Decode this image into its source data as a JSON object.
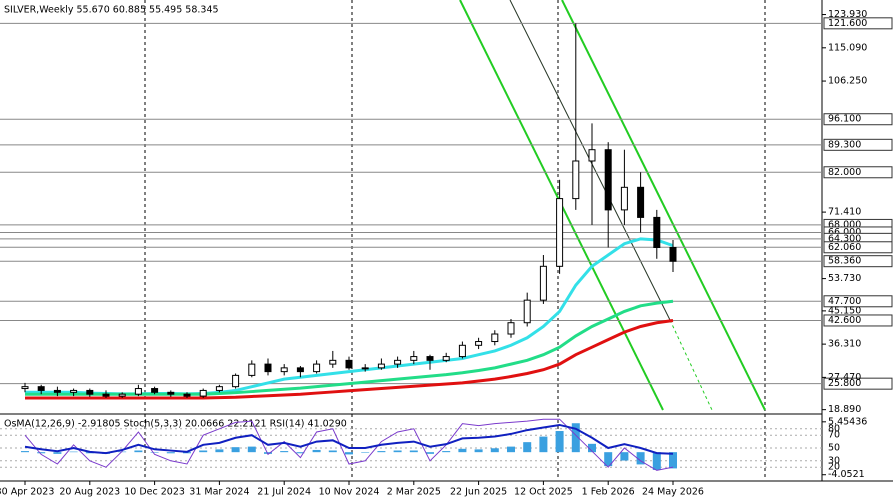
{
  "chart_data": {
    "type": "candlestick",
    "title": "SILVER,Weekly  55.670 60.885 55.495 58.345",
    "categories": [
      "30 Apr 2023",
      null,
      null,
      null,
      "20 Aug 2023",
      null,
      null,
      null,
      "10 Dec 2023",
      null,
      null,
      null,
      "31 Mar 2024",
      null,
      null,
      null,
      "21 Jul 2024",
      null,
      null,
      null,
      "10 Nov 2024",
      null,
      null,
      null,
      "2 Mar 2025",
      null,
      null,
      null,
      "22 Jun 2025",
      null,
      null,
      null,
      "12 Oct 2025",
      null,
      null,
      null,
      "1 Feb 2026",
      null,
      null,
      null,
      "24 May 2026"
    ],
    "open": [
      24.5,
      25,
      24,
      23.5,
      24,
      23,
      22.5,
      23,
      24.5,
      23.5,
      23,
      22.5,
      24,
      25,
      28,
      31,
      29,
      30,
      29,
      31,
      32,
      30,
      30,
      31,
      32,
      33,
      32,
      33,
      36,
      37,
      39,
      42,
      48,
      57,
      75,
      85,
      88,
      72,
      78,
      70,
      62
    ],
    "high": [
      26,
      25.5,
      25,
      24.5,
      24.5,
      24,
      23.5,
      25.5,
      25,
      24,
      23.5,
      24.5,
      25.5,
      28.5,
      32,
      32.5,
      31,
      30.5,
      32,
      34.5,
      33,
      31,
      32.5,
      33,
      34.5,
      33.5,
      34,
      37,
      38,
      40,
      43,
      50,
      60,
      80,
      121.6,
      95,
      90,
      88,
      82,
      72,
      64
    ],
    "low": [
      23.5,
      23,
      22.5,
      22.5,
      22.3,
      22,
      22,
      22.5,
      23,
      22.3,
      22,
      22,
      23.5,
      24.5,
      27.5,
      28,
      28,
      27.5,
      28.5,
      30,
      29.5,
      29,
      29.5,
      30,
      31,
      29.5,
      31.5,
      32.5,
      35,
      36,
      38,
      41,
      47,
      55,
      72,
      68,
      62,
      68,
      66,
      59,
      55.5
    ],
    "close": [
      25,
      24,
      23.5,
      24,
      23,
      22.5,
      23,
      24.5,
      23.5,
      23,
      22.5,
      24,
      25,
      28,
      31,
      29,
      30,
      29,
      31,
      32,
      30,
      30,
      31,
      32,
      33,
      32,
      33,
      36,
      37,
      39,
      42,
      48,
      57,
      75,
      85,
      88,
      72,
      78,
      70,
      62,
      58.345
    ],
    "moving_averages": [
      {
        "color": "#33e0e8",
        "values": [
          23.5,
          23.5,
          23.5,
          23.5,
          23.3,
          23.2,
          23.1,
          23.1,
          23.2,
          23.2,
          23.1,
          23.2,
          23.5,
          24,
          25,
          26,
          27,
          27.5,
          28,
          28.5,
          29,
          29.5,
          30,
          30.5,
          31,
          31.5,
          32,
          32.5,
          33.5,
          34.5,
          36,
          38,
          41,
          45,
          52,
          57,
          60,
          63,
          64.3,
          64,
          62.5
        ]
      },
      {
        "color": "#22dd88",
        "values": [
          23,
          23,
          23,
          23,
          23,
          23,
          23,
          23,
          23,
          23,
          23,
          23,
          23.2,
          23.4,
          23.7,
          24,
          24.3,
          24.6,
          25,
          25.4,
          25.8,
          26.2,
          26.6,
          27,
          27.4,
          27.8,
          28.2,
          28.7,
          29.3,
          30,
          31,
          32,
          33.5,
          35.5,
          38.5,
          41,
          43,
          45,
          46.5,
          47.2,
          47.7
        ]
      },
      {
        "color": "#e01010",
        "values": [
          22,
          22,
          22,
          22,
          22,
          22,
          22,
          22,
          22,
          22,
          22,
          22,
          22.1,
          22.2,
          22.4,
          22.6,
          22.8,
          23,
          23.3,
          23.6,
          23.9,
          24.2,
          24.5,
          24.8,
          25.1,
          25.4,
          25.7,
          26,
          26.5,
          27,
          27.7,
          28.5,
          29.5,
          31,
          33.5,
          35.5,
          37.5,
          39.5,
          41,
          42,
          42.6
        ]
      }
    ],
    "ylim": [
      18,
      127.8
    ],
    "yticks": [
      {
        "value": 123.93,
        "label": "123.930"
      },
      {
        "value": 115.09,
        "label": "115.090"
      },
      {
        "value": 106.25,
        "label": "106.250"
      },
      {
        "value": 71.41,
        "label": "71.410"
      },
      {
        "value": 53.73,
        "label": "53.730"
      },
      {
        "value": 45.15,
        "label": "45.150"
      },
      {
        "value": 36.31,
        "label": "36.310"
      },
      {
        "value": 27.47,
        "label": "27.470"
      },
      {
        "value": 18.89,
        "label": "18.890"
      }
    ],
    "levels": [
      {
        "value": 121.6,
        "label": "121.600"
      },
      {
        "value": 96.1,
        "label": "96.100"
      },
      {
        "value": 89.3,
        "label": "89.300"
      },
      {
        "value": 82,
        "label": "82.000"
      },
      {
        "value": 68,
        "label": "68.000"
      },
      {
        "value": 66,
        "label": "66.000"
      },
      {
        "value": 64.3,
        "label": "64.300"
      },
      {
        "value": 62.06,
        "label": "62.060"
      },
      {
        "value": 58.36,
        "label": "58.360"
      },
      {
        "value": 47.7,
        "label": "47.700"
      },
      {
        "value": 42.6,
        "label": "42.600"
      },
      {
        "value": 25.8,
        "label": "25.800"
      }
    ],
    "indicator": {
      "title": "OsMA(12,26,9) -2.91805  Stoch(5,3,3) 20.0666 22.2121  RSI(14) 41.0290",
      "osma": {
        "color": "#3aa0e0",
        "ylim": [
          -5,
          6.5
        ],
        "yticks": [
          5.45436,
          -4.0521
        ],
        "values": [
          0.2,
          -0.2,
          -0.3,
          0.1,
          -0.2,
          -0.3,
          0.1,
          0.3,
          -0.1,
          -0.2,
          -0.2,
          0.3,
          0.5,
          0.9,
          1.0,
          -0.3,
          0.2,
          -0.2,
          0.4,
          0.3,
          -0.4,
          -0.1,
          0.2,
          0.3,
          0.3,
          -0.3,
          0.2,
          0.6,
          0.5,
          0.7,
          1.0,
          1.8,
          2.8,
          3.8,
          5.2,
          1.5,
          -2.5,
          -1.5,
          -2.2,
          -3.2,
          -2.91805
        ]
      },
      "stoch": {
        "color": "#7a3acc",
        "values": [
          70,
          40,
          25,
          55,
          30,
          20,
          45,
          75,
          40,
          30,
          25,
          70,
          80,
          90,
          92,
          40,
          60,
          35,
          75,
          80,
          25,
          30,
          60,
          75,
          80,
          30,
          55,
          88,
          85,
          88,
          90,
          92,
          95,
          95,
          70,
          45,
          20,
          50,
          30,
          15,
          20.0666
        ]
      },
      "rsi": {
        "color": "#1020c0",
        "values": [
          52,
          48,
          45,
          50,
          44,
          42,
          47,
          55,
          48,
          46,
          44,
          55,
          58,
          66,
          70,
          55,
          58,
          52,
          60,
          62,
          50,
          50,
          55,
          58,
          60,
          52,
          56,
          65,
          66,
          68,
          72,
          78,
          82,
          86,
          80,
          66,
          50,
          56,
          50,
          42,
          41.029
        ]
      },
      "ylim": [
        0,
        100
      ],
      "yticks": [
        80,
        70,
        50,
        30,
        20
      ]
    }
  }
}
